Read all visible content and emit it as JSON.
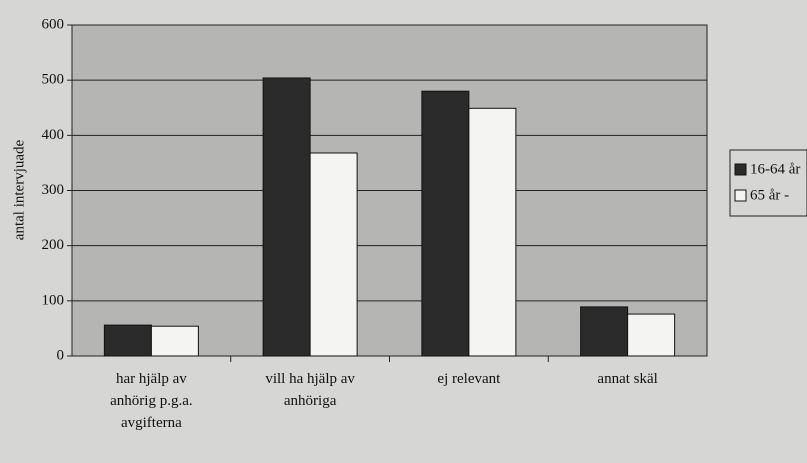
{
  "chart_data": {
    "type": "bar",
    "y_label": "antal intervjuade",
    "categories": [
      "har hjälp av anhörig p.g.a. avgifterna",
      "vill ha hjälp av anhöriga",
      "ej relevant",
      "annat skäl"
    ],
    "series": [
      {
        "name": "16-64 år",
        "color": "#2b2b2b",
        "values": [
          56,
          504,
          480,
          89
        ]
      },
      {
        "name": "65 år -",
        "color": "#f4f4f2",
        "values": [
          54,
          368,
          449,
          76
        ]
      }
    ],
    "ylim": [
      0,
      600
    ],
    "yticks": [
      0,
      100,
      200,
      300,
      400,
      500,
      600
    ],
    "grid": true,
    "legend": "right"
  }
}
